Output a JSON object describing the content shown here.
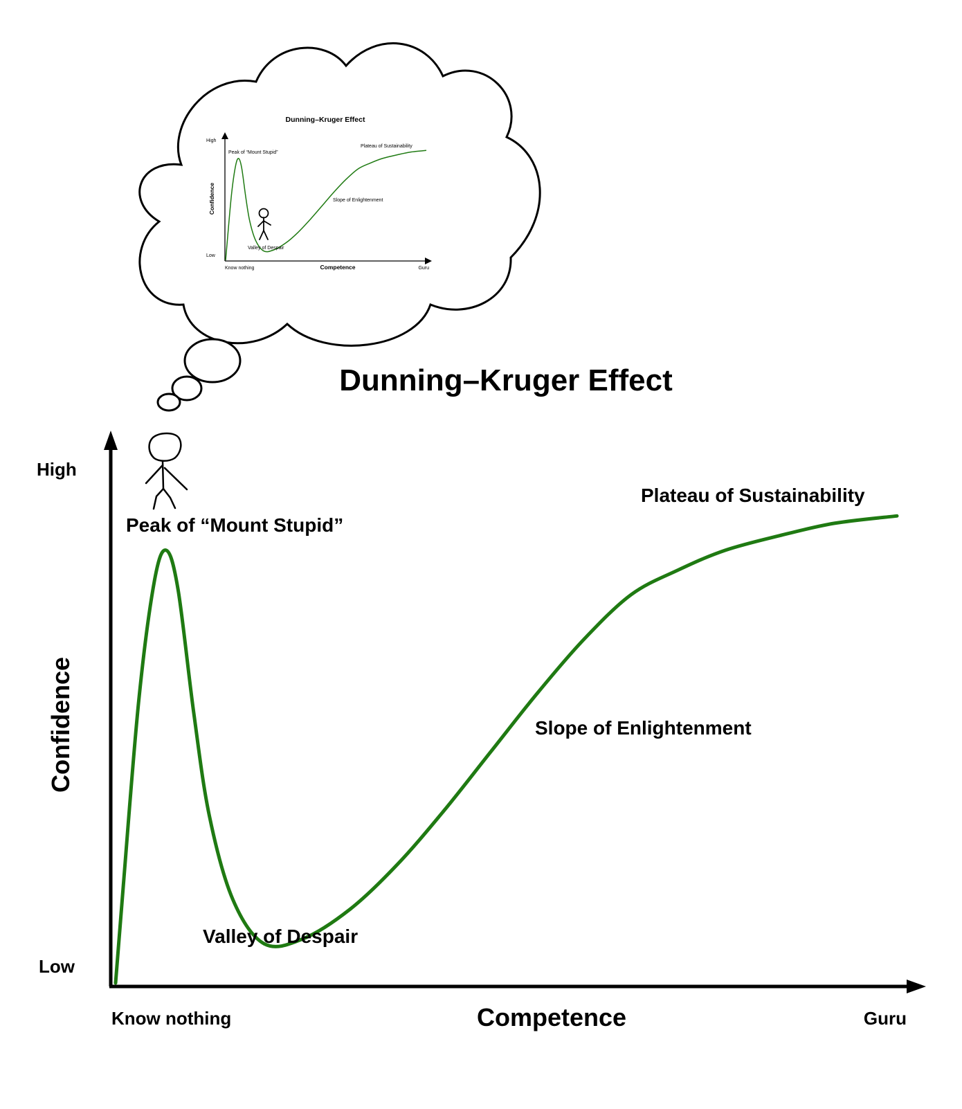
{
  "chart_data": {
    "type": "line",
    "title": "Dunning–Kruger Effect",
    "xlabel": "Competence",
    "ylabel": "Confidence",
    "x_tick_labels": [
      "Know nothing",
      "Guru"
    ],
    "y_tick_labels": [
      "High",
      "Low"
    ],
    "annotations": [
      "Peak of “Mount Stupid”",
      "Valley of Despair",
      "Slope of Enlightenment",
      "Plateau of Sustainability"
    ],
    "series_color": "#1f7a12",
    "curve": {
      "x": [
        0,
        1,
        3,
        5,
        6.5,
        8,
        10,
        12,
        15,
        19,
        24,
        30,
        36,
        42,
        48,
        54,
        60,
        66,
        72,
        78,
        85,
        92,
        100
      ],
      "y": [
        0,
        20,
        58,
        82,
        88,
        80,
        55,
        34,
        17,
        8,
        9,
        15,
        24,
        35,
        47,
        59,
        70,
        79,
        84,
        88,
        91,
        93.5,
        95
      ]
    },
    "grid": false,
    "legend": "none"
  },
  "thought_bubble": {
    "chart_data": {
      "type": "line",
      "title": "Dunning–Kruger Effect",
      "xlabel": "Competence",
      "ylabel": "Confidence",
      "x_tick_labels": [
        "Know nothing",
        "Guru"
      ],
      "y_tick_labels": [
        "High",
        "Low"
      ],
      "annotations": [
        "Peak of “Mount Stupid”",
        "Valley of Despair",
        "Slope of Enlightenment",
        "Plateau of Sustainability"
      ]
    }
  }
}
